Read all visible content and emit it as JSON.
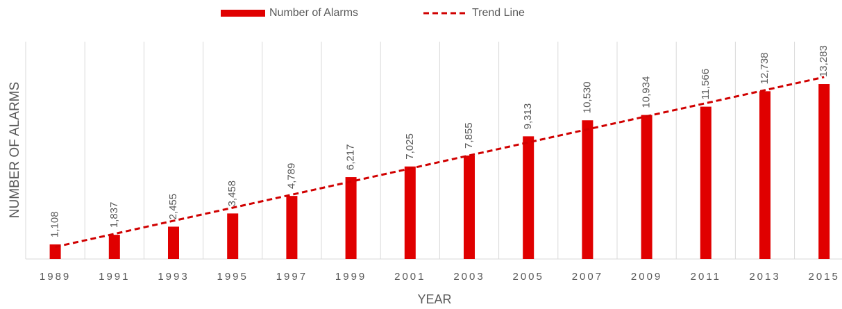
{
  "chart_data": {
    "type": "bar",
    "xlabel": "YEAR",
    "ylabel": "NUMBER OF ALARMS",
    "categories": [
      "1989",
      "1991",
      "1993",
      "1995",
      "1997",
      "1999",
      "2001",
      "2003",
      "2005",
      "2007",
      "2009",
      "2011",
      "2013",
      "2015"
    ],
    "series": [
      {
        "name": "Number of Alarms",
        "type": "bar",
        "color": "#e00000",
        "values": [
          1108,
          1837,
          2455,
          3458,
          4789,
          6217,
          7025,
          7855,
          9313,
          10530,
          10934,
          11566,
          12738,
          13283
        ],
        "value_labels": [
          "1,108",
          "1,837",
          "2,455",
          "3,458",
          "4,789",
          "6,217",
          "7,025",
          "7,855",
          "9,313",
          "10,530",
          "10,934",
          "11,566",
          "12,738",
          "13,283"
        ]
      },
      {
        "name": "Trend Line",
        "type": "line",
        "dashed": true,
        "color": "#d00000",
        "values": [
          917,
          1909,
          2901,
          3893,
          4885,
          5877,
          6869,
          7861,
          8853,
          9845,
          10837,
          11829,
          12821,
          13813
        ]
      }
    ],
    "ylim": [
      0,
      16500
    ],
    "grid": true,
    "legend": "top"
  }
}
